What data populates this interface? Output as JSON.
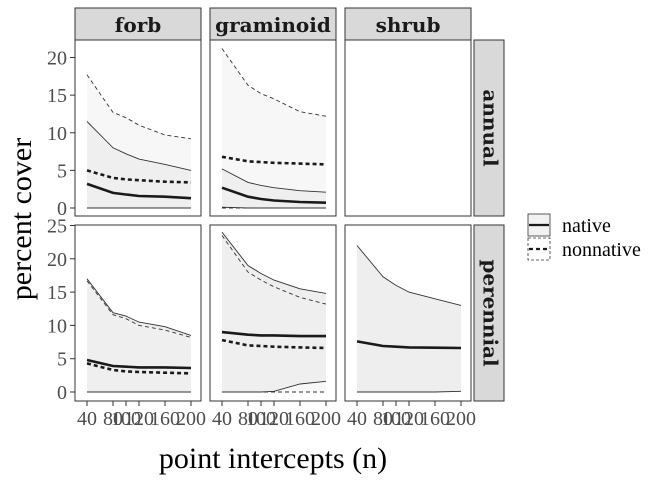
{
  "chart_data": {
    "type": "area",
    "xlabel": "point intercepts (n)",
    "ylabel": "percent cover",
    "x": [
      40,
      80,
      100,
      120,
      160,
      200
    ],
    "xtick_labels": [
      "40",
      "80",
      "100",
      "120",
      "160",
      "200"
    ],
    "xlim": [
      40,
      200
    ],
    "ylim": [
      0,
      25
    ],
    "yticks": [
      0,
      5,
      10,
      15,
      20,
      25
    ],
    "col_facets": [
      "forb",
      "graminoid",
      "shrub"
    ],
    "row_facets": [
      "annual",
      "perennial"
    ],
    "legend": {
      "position": "right",
      "entries": [
        {
          "label": "native",
          "linetype": "solid",
          "fill": "#f2f2f2"
        },
        {
          "label": "nonnative",
          "linetype": "dashed",
          "fill": "#ffffff"
        }
      ]
    },
    "panels": [
      {
        "col": "forb",
        "row": "annual",
        "series": [
          {
            "name": "native",
            "mean": [
              3.2,
              2.0,
              1.8,
              1.6,
              1.5,
              1.3
            ],
            "lower": [
              0,
              0,
              0,
              0,
              0,
              0
            ],
            "upper": [
              11.5,
              8.0,
              7.2,
              6.5,
              5.8,
              5.0
            ]
          },
          {
            "name": "nonnative",
            "mean": [
              5.0,
              4.0,
              3.8,
              3.7,
              3.5,
              3.4
            ],
            "lower": [
              0,
              0,
              0,
              0,
              0,
              0
            ],
            "upper": [
              17.7,
              12.7,
              12.0,
              11.0,
              9.7,
              9.2
            ]
          }
        ]
      },
      {
        "col": "graminoid",
        "row": "annual",
        "series": [
          {
            "name": "native",
            "mean": [
              2.7,
              1.5,
              1.2,
              1.0,
              0.8,
              0.7
            ],
            "lower": [
              0.1,
              0,
              0,
              0,
              0,
              0
            ],
            "upper": [
              5.2,
              3.4,
              3.0,
              2.7,
              2.3,
              2.1
            ]
          },
          {
            "name": "nonnative",
            "mean": [
              6.8,
              6.2,
              6.1,
              6.0,
              5.9,
              5.8
            ],
            "lower": [
              0,
              0,
              0,
              0,
              0,
              0
            ],
            "upper": [
              21.2,
              16.3,
              15.2,
              14.5,
              12.8,
              12.2
            ]
          }
        ]
      },
      {
        "col": "shrub",
        "row": "annual",
        "series": []
      },
      {
        "col": "forb",
        "row": "perennial",
        "series": [
          {
            "name": "native",
            "mean": [
              4.8,
              3.9,
              3.8,
              3.7,
              3.7,
              3.6
            ],
            "lower": [
              0,
              0,
              0,
              0,
              0,
              0
            ],
            "upper": [
              17.0,
              11.9,
              11.4,
              10.5,
              9.8,
              8.5
            ]
          },
          {
            "name": "nonnative",
            "mean": [
              4.3,
              3.3,
              3.1,
              3.0,
              2.9,
              2.8
            ],
            "lower": [
              0,
              0,
              0,
              0,
              0,
              0
            ],
            "upper": [
              16.7,
              11.6,
              11.0,
              10.0,
              9.3,
              8.2
            ]
          }
        ]
      },
      {
        "col": "graminoid",
        "row": "perennial",
        "series": [
          {
            "name": "native",
            "mean": [
              9.0,
              8.6,
              8.5,
              8.5,
              8.4,
              8.4
            ],
            "lower": [
              0,
              0,
              0,
              0.1,
              1.2,
              1.6
            ],
            "upper": [
              24.0,
              19.0,
              17.8,
              16.8,
              15.5,
              14.8
            ]
          },
          {
            "name": "nonnative",
            "mean": [
              7.8,
              7.0,
              6.9,
              6.8,
              6.7,
              6.6
            ],
            "lower": [
              0,
              0,
              0,
              0,
              0,
              0
            ],
            "upper": [
              23.5,
              18.0,
              16.8,
              15.8,
              14.2,
              13.2
            ]
          }
        ]
      },
      {
        "col": "shrub",
        "row": "perennial",
        "series": [
          {
            "name": "native",
            "mean": [
              7.6,
              6.9,
              6.8,
              6.7,
              6.65,
              6.6
            ],
            "lower": [
              0,
              0,
              0,
              0,
              0,
              0.1
            ],
            "upper": [
              22.0,
              17.3,
              16.0,
              15.0,
              14.0,
              13.0
            ]
          }
        ]
      }
    ]
  }
}
